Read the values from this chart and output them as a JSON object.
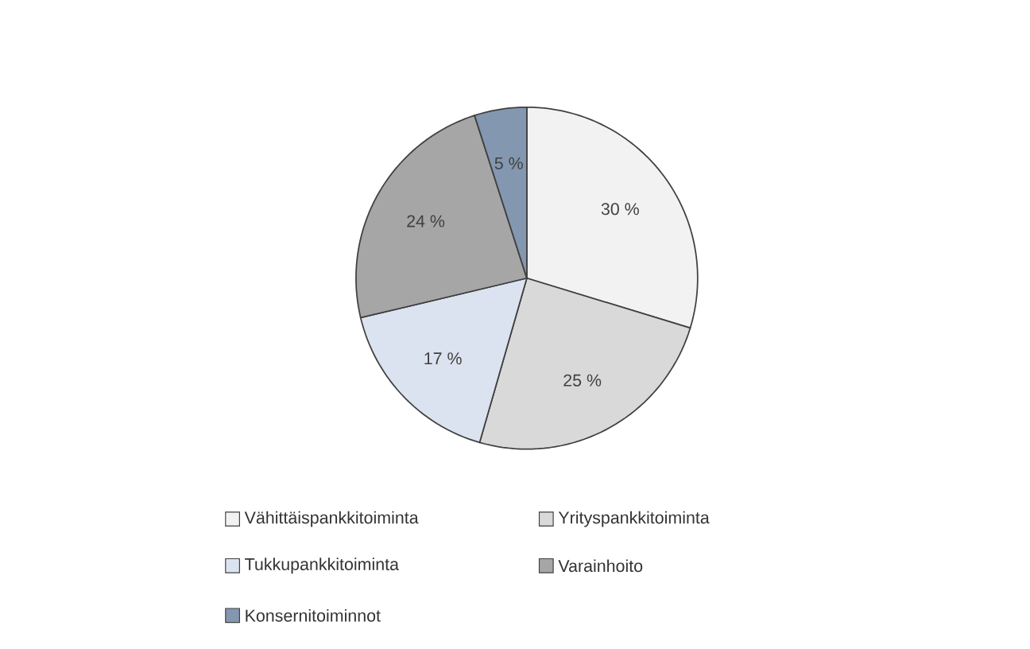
{
  "chart_data": {
    "type": "pie",
    "categories": [
      "Vähittäispankkitoiminta",
      "Yrityspankkitoiminta",
      "Tukkupankkitoiminta",
      "Varainhoito",
      "Konsernitoiminnot"
    ],
    "values": [
      30,
      25,
      17,
      24,
      5
    ],
    "value_labels": [
      "30 %",
      "25 %",
      "17 %",
      "24 %",
      "5 %"
    ],
    "colors": [
      "#f2f2f2",
      "#d9d9d9",
      "#dce3f0",
      "#a6a6a6",
      "#8497b0"
    ],
    "legend": "bottom"
  }
}
